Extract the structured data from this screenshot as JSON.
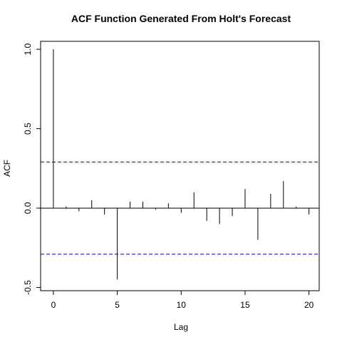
{
  "chart_data": {
    "type": "bar",
    "title": "ACF Function Generated From Holt's Forecast",
    "xlabel": "Lag",
    "ylabel": "ACF",
    "x": [
      0,
      1,
      2,
      3,
      4,
      5,
      6,
      7,
      8,
      9,
      10,
      11,
      12,
      13,
      14,
      15,
      16,
      17,
      18,
      19,
      20
    ],
    "values": [
      1.0,
      0.01,
      -0.02,
      0.05,
      -0.04,
      -0.45,
      0.04,
      0.04,
      -0.01,
      0.03,
      -0.03,
      0.1,
      -0.08,
      -0.1,
      -0.05,
      0.12,
      -0.2,
      0.09,
      0.17,
      0.01,
      -0.04
    ],
    "xlim": [
      -1,
      20.8
    ],
    "ylim": [
      -0.52,
      1.05
    ],
    "xticks": [
      0,
      5,
      10,
      15,
      20
    ],
    "xtick_labels": [
      "0",
      "5",
      "10",
      "15",
      "20"
    ],
    "yticks": [
      -0.5,
      0.0,
      0.5,
      1.0
    ],
    "ytick_labels": [
      "-0.5",
      "0.0",
      "0.5",
      "1.0"
    ],
    "confidence_bound": 0.29,
    "zero_line": true,
    "grid": false,
    "colors": {
      "bars": "#000000",
      "confidence": "#0000cc",
      "axes": "#000000"
    }
  }
}
